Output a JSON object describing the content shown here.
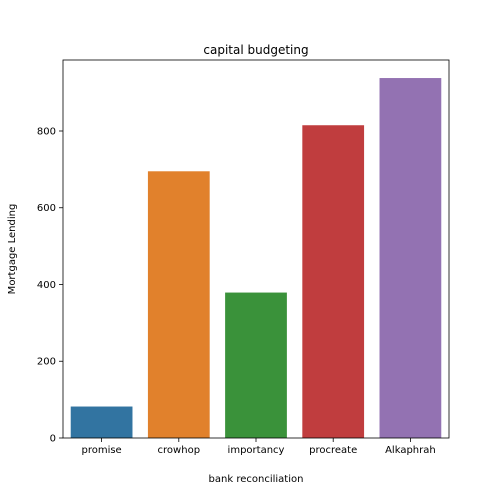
{
  "chart_data": {
    "type": "bar",
    "title": "capital budgeting",
    "xlabel": "bank reconciliation",
    "ylabel": "Mortgage Lending",
    "categories": [
      "promise",
      "crowhop",
      "importancy",
      "procreate",
      "Alkaphrah"
    ],
    "values": [
      82,
      695,
      379,
      815,
      938
    ],
    "colors": [
      "#3274a1",
      "#e1812c",
      "#3a923a",
      "#c03d3e",
      "#9372b2"
    ],
    "ylim": [
      0,
      985
    ],
    "yticks": [
      0,
      200,
      400,
      600,
      800
    ],
    "ytick_labels": [
      "0",
      "200",
      "400",
      "600",
      "800"
    ],
    "grid": false
  }
}
